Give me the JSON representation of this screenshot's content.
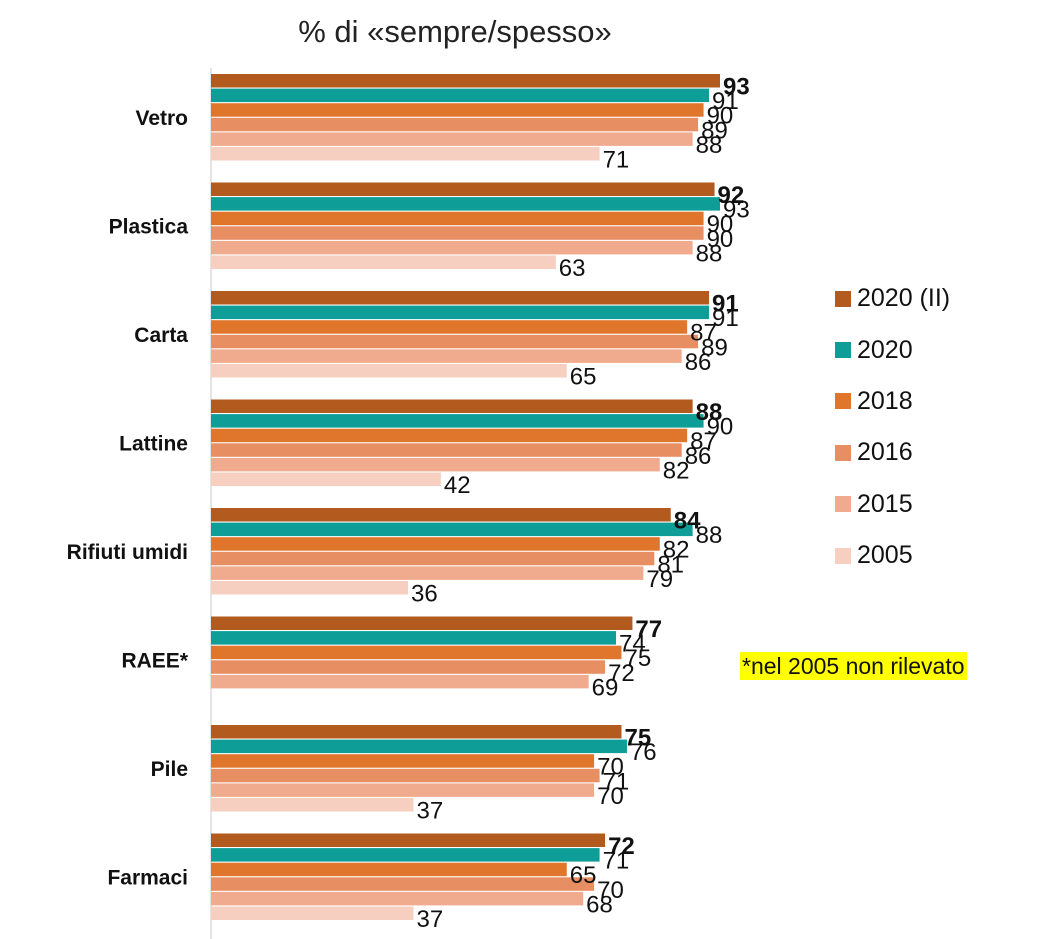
{
  "chart_data": {
    "type": "bar",
    "orientation": "horizontal",
    "title": "% di «sempre/spesso»",
    "categories": [
      "Vetro",
      "Plastica",
      "Carta",
      "Lattine",
      "Rifiuti umidi",
      "RAEE*",
      "Pile",
      "Farmaci"
    ],
    "series": [
      {
        "name": "2020 (II)",
        "color": "#b35a1f",
        "values": [
          93,
          92,
          91,
          88,
          84,
          77,
          75,
          72
        ]
      },
      {
        "name": "2020",
        "color": "#0e9e97",
        "values": [
          91,
          93,
          91,
          90,
          88,
          74,
          76,
          71
        ]
      },
      {
        "name": "2018",
        "color": "#e0762b",
        "values": [
          90,
          90,
          87,
          87,
          82,
          75,
          70,
          65
        ]
      },
      {
        "name": "2016",
        "color": "#e88e63",
        "values": [
          89,
          90,
          89,
          86,
          81,
          72,
          71,
          70
        ]
      },
      {
        "name": "2015",
        "color": "#f0ab8e",
        "values": [
          88,
          88,
          86,
          82,
          79,
          69,
          70,
          68
        ]
      },
      {
        "name": "2005",
        "color": "#f6cfc0",
        "values": [
          71,
          63,
          65,
          42,
          36,
          null,
          37,
          37
        ]
      }
    ],
    "xlim": [
      0,
      100
    ],
    "grid": false,
    "legend_position": "right",
    "footnote": "*nel 2005 non rilevato"
  }
}
